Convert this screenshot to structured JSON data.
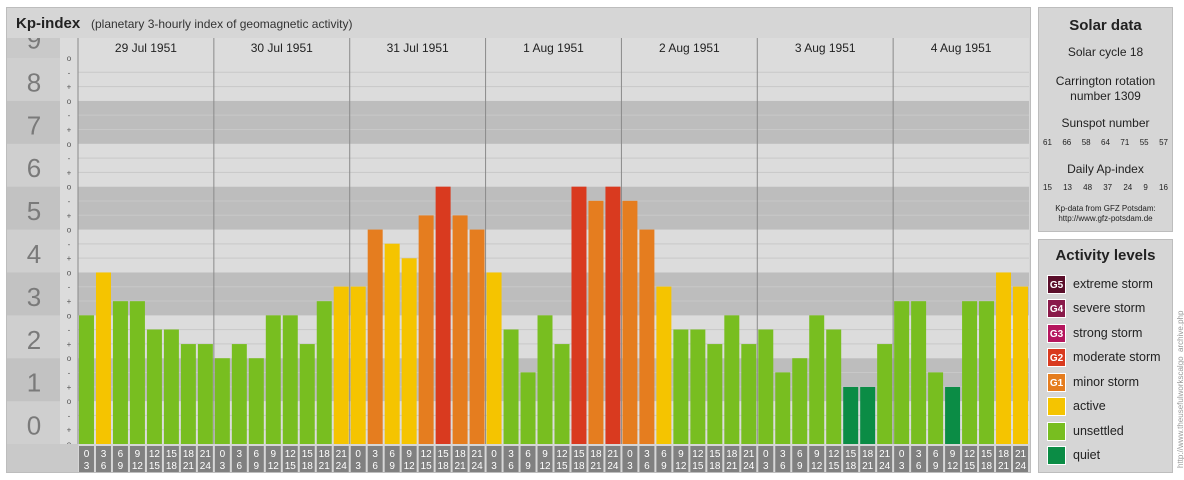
{
  "header": {
    "title": "Kp-index",
    "subtitle": "(planetary 3-hourly index of geomagnetic activity)"
  },
  "solar": {
    "title": "Solar data",
    "cycle": "Solar cycle 18",
    "carrington_line1": "Carrington rotation",
    "carrington_line2": "number 1309",
    "sunspot_title": "Sunspot number",
    "sunspot_values": [
      "61",
      "66",
      "58",
      "64",
      "71",
      "55",
      "57"
    ],
    "ap_title": "Daily Ap-index",
    "ap_values": [
      "15",
      "13",
      "48",
      "37",
      "24",
      "9",
      "16"
    ],
    "source_line1": "Kp-data from GFZ Potsdam:",
    "source_line2": "http://www.gfz-potsdam.de"
  },
  "activity": {
    "title": "Activity levels",
    "levels": [
      {
        "code": "G5",
        "label": "extreme storm",
        "color": "#5a0e2a"
      },
      {
        "code": "G4",
        "label": "severe storm",
        "color": "#8a1a4a"
      },
      {
        "code": "G3",
        "label": "strong storm",
        "color": "#b5165e"
      },
      {
        "code": "G2",
        "label": "moderate storm",
        "color": "#d93a1f"
      },
      {
        "code": "G1",
        "label": "minor storm",
        "color": "#e57d1f"
      },
      {
        "code": "",
        "label": "active",
        "color": "#f5c400"
      },
      {
        "code": "",
        "label": "unsettled",
        "color": "#78be20"
      },
      {
        "code": "",
        "label": "quiet",
        "color": "#0b8c45"
      }
    ]
  },
  "watermark": "http://www.theusefulworkscalgo_archive.php",
  "chart_data": {
    "type": "bar",
    "ylim": [
      0,
      9
    ],
    "y_ticks": [
      "0",
      "1",
      "2",
      "3",
      "4",
      "5",
      "6",
      "7",
      "8",
      "9"
    ],
    "sub_ticks": [
      "o",
      "-",
      "+"
    ],
    "days": [
      "29 Jul 1951",
      "30 Jul 1951",
      "31 Jul 1951",
      "1 Aug 1951",
      "2 Aug 1951",
      "3 Aug 1951",
      "4 Aug 1951"
    ],
    "hour_labels": [
      [
        "0",
        "3"
      ],
      [
        "3",
        "6"
      ],
      [
        "6",
        "9"
      ],
      [
        "9",
        "12"
      ],
      [
        "12",
        "15"
      ],
      [
        "15",
        "18"
      ],
      [
        "18",
        "21"
      ],
      [
        "21",
        "24"
      ]
    ],
    "values": [
      3.0,
      4.0,
      3.33,
      3.33,
      2.67,
      2.67,
      2.33,
      2.33,
      2.0,
      2.33,
      2.0,
      3.0,
      3.0,
      2.33,
      3.33,
      3.67,
      3.67,
      5.0,
      4.67,
      4.33,
      5.33,
      6.0,
      5.33,
      5.0,
      4.0,
      2.67,
      1.67,
      3.0,
      2.33,
      6.0,
      5.67,
      6.0,
      5.67,
      5.0,
      3.67,
      2.67,
      2.67,
      2.33,
      3.0,
      2.33,
      2.67,
      1.67,
      2.0,
      3.0,
      2.67,
      1.33,
      1.33,
      2.33,
      3.33,
      3.33,
      1.67,
      1.33,
      3.33,
      3.33,
      4.0,
      3.67
    ],
    "grid": true
  }
}
